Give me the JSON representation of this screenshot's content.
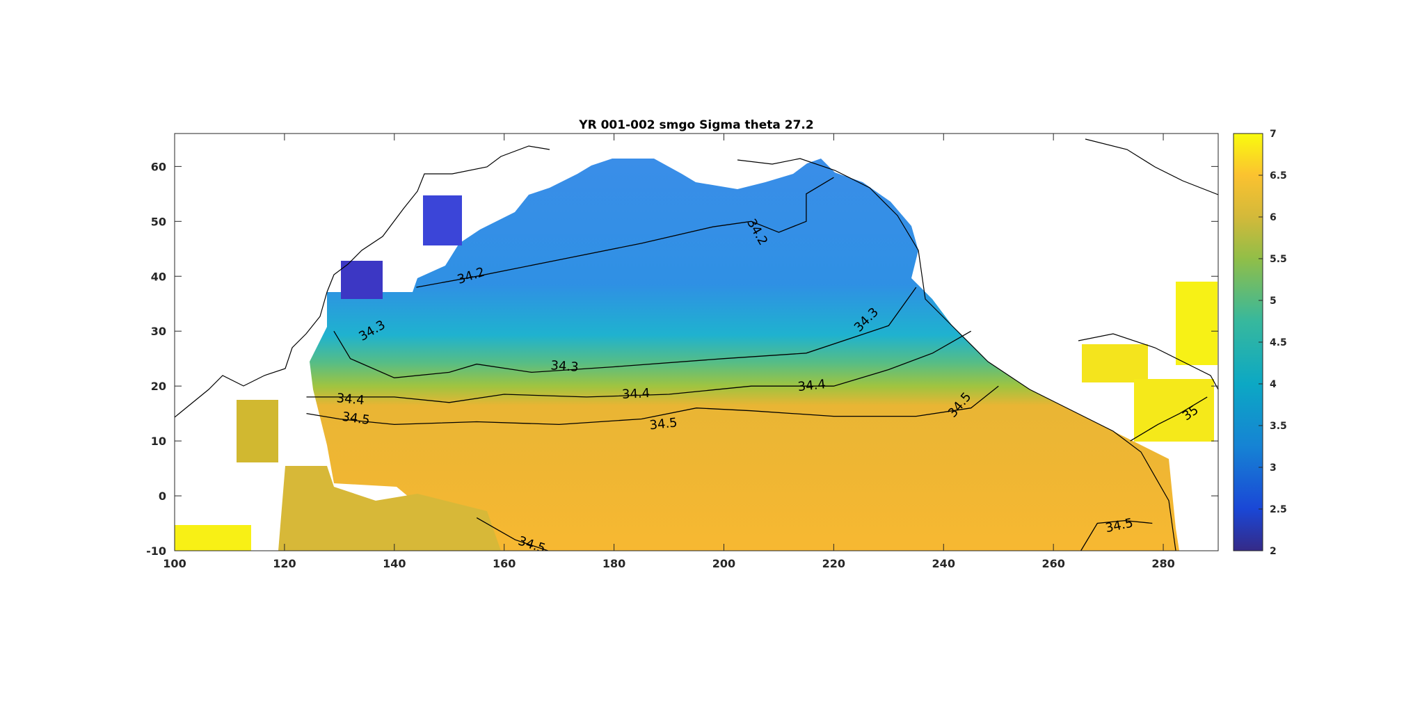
{
  "chart_data": {
    "type": "heatmap",
    "title": "YR 001-002 smgo Sigma theta 27.2",
    "xlim": [
      100,
      290
    ],
    "ylim": [
      -10,
      66
    ],
    "x_ticks": [
      100,
      120,
      140,
      160,
      180,
      200,
      220,
      240,
      260,
      280
    ],
    "y_ticks": [
      -10,
      0,
      10,
      20,
      30,
      40,
      50,
      60
    ],
    "colorbar": {
      "range": [
        2,
        7
      ],
      "ticks": [
        2,
        2.5,
        3,
        3.5,
        4,
        4.5,
        5,
        5.5,
        6,
        6.5,
        7
      ],
      "colormap": "parula"
    },
    "contours": [
      {
        "level": "34.2",
        "points": [
          [
            144,
            38
          ],
          [
            155,
            40
          ],
          [
            170,
            43
          ],
          [
            185,
            46
          ],
          [
            198,
            49
          ],
          [
            205,
            50
          ],
          [
            210,
            48
          ],
          [
            215,
            50
          ],
          [
            215,
            55
          ],
          [
            220,
            58
          ]
        ]
      },
      {
        "level": "34.3",
        "points": [
          [
            129,
            30
          ],
          [
            132,
            25
          ],
          [
            140,
            21.5
          ],
          [
            150,
            22.5
          ],
          [
            155,
            24
          ],
          [
            165,
            22.5
          ],
          [
            180,
            23.5
          ],
          [
            200,
            25
          ],
          [
            215,
            26
          ],
          [
            230,
            31
          ],
          [
            235,
            38
          ]
        ]
      },
      {
        "level": "34.4",
        "points": [
          [
            124,
            18
          ],
          [
            140,
            18
          ],
          [
            150,
            17
          ],
          [
            160,
            18.5
          ],
          [
            175,
            18
          ],
          [
            190,
            18.5
          ],
          [
            205,
            20
          ],
          [
            220,
            20
          ],
          [
            230,
            23
          ],
          [
            238,
            26
          ],
          [
            245,
            30
          ]
        ]
      },
      {
        "level": "34.5",
        "points": [
          [
            124,
            15
          ],
          [
            130,
            14
          ],
          [
            140,
            13
          ],
          [
            155,
            13.5
          ],
          [
            170,
            13
          ],
          [
            185,
            14
          ],
          [
            195,
            16
          ],
          [
            205,
            15.5
          ],
          [
            220,
            14.5
          ],
          [
            235,
            14.5
          ],
          [
            245,
            16
          ],
          [
            250,
            20
          ]
        ]
      },
      {
        "level": "34.5",
        "points": [
          [
            265,
            -10
          ],
          [
            268,
            -5
          ],
          [
            273,
            -4.5
          ],
          [
            278,
            -5
          ]
        ]
      },
      {
        "level": "34.5",
        "points": [
          [
            155,
            -4
          ],
          [
            162,
            -8
          ],
          [
            168,
            -10
          ]
        ]
      },
      {
        "level": "35",
        "points": [
          [
            274,
            10
          ],
          [
            279,
            13
          ],
          [
            283,
            15
          ],
          [
            288,
            18
          ]
        ]
      }
    ],
    "contour_labels": [
      {
        "text": "34.2",
        "x": 154,
        "y": 40,
        "angle": -18
      },
      {
        "text": "34.2",
        "x": 206,
        "y": 48,
        "angle": 60
      },
      {
        "text": "34.3",
        "x": 136,
        "y": 30,
        "angle": -30
      },
      {
        "text": "34.3",
        "x": 171,
        "y": 23.5,
        "angle": 4
      },
      {
        "text": "34.3",
        "x": 226,
        "y": 32,
        "angle": -45
      },
      {
        "text": "34.4",
        "x": 132,
        "y": 17.5,
        "angle": 5
      },
      {
        "text": "34.4",
        "x": 184,
        "y": 18.5,
        "angle": -3
      },
      {
        "text": "34.4",
        "x": 216,
        "y": 20,
        "angle": -6
      },
      {
        "text": "34.5",
        "x": 133,
        "y": 14,
        "angle": 8
      },
      {
        "text": "34.5",
        "x": 189,
        "y": 13,
        "angle": -6
      },
      {
        "text": "34.5",
        "x": 243,
        "y": 16.5,
        "angle": -50
      },
      {
        "text": "34.5",
        "x": 165,
        "y": -9,
        "angle": 18
      },
      {
        "text": "34.5",
        "x": 272,
        "y": -5.5,
        "angle": -12
      },
      {
        "text": "35",
        "x": 285,
        "y": 15,
        "angle": -35
      }
    ]
  }
}
